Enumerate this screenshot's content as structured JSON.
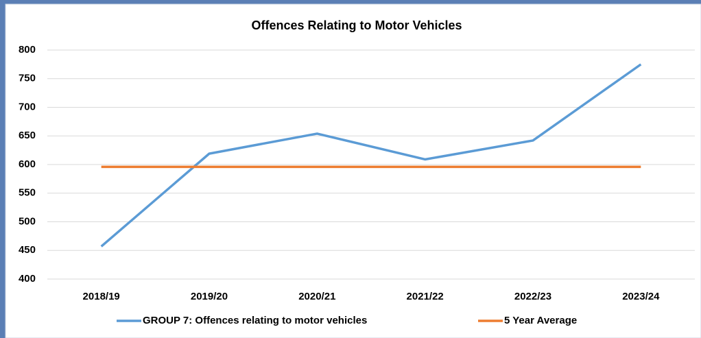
{
  "chart_data": {
    "type": "line",
    "title": "Offences Relating to Motor Vehicles",
    "categories": [
      "2018/19",
      "2019/20",
      "2020/21",
      "2021/22",
      "2022/23",
      "2023/24"
    ],
    "series": [
      {
        "name": "GROUP 7: Offences relating to motor vehicles",
        "color": "#5b9bd5",
        "values": [
          457,
          619,
          654,
          609,
          642,
          775
        ]
      },
      {
        "name": "5 Year Average",
        "color": "#ed7d31",
        "values": [
          596,
          596,
          596,
          596,
          596,
          596
        ]
      }
    ],
    "ylim": [
      400,
      800
    ],
    "yticks": [
      400,
      450,
      500,
      550,
      600,
      650,
      700,
      750,
      800
    ],
    "grid": true,
    "legend": "bottom"
  }
}
